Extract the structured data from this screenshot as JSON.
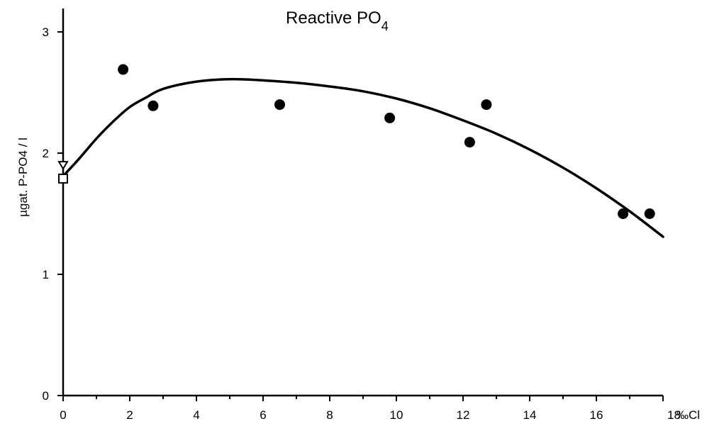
{
  "chart_data": {
    "type": "scatter",
    "title": "Reactive PO",
    "title_subscript": "4",
    "ylabel": "µgat. P-PO4 / l",
    "xlabel": "‰Cl",
    "xlim": [
      0,
      18
    ],
    "ylim": [
      0,
      3
    ],
    "x_ticks": [
      0,
      2,
      4,
      6,
      8,
      10,
      12,
      14,
      16,
      18
    ],
    "x_tick_labels": [
      "0",
      "2",
      "4",
      "6",
      "8",
      "10",
      "12",
      "14",
      "16",
      "18"
    ],
    "y_ticks": [
      0,
      1,
      2,
      3
    ],
    "y_tick_labels": [
      "0",
      "1",
      "2",
      "3"
    ],
    "grid": false,
    "series": [
      {
        "marker": "filled-circle",
        "x": [
          1.8,
          2.7,
          6.5,
          9.8,
          12.2,
          12.7,
          16.8,
          17.6
        ],
        "y": [
          2.69,
          2.39,
          2.4,
          2.29,
          2.09,
          2.4,
          1.5,
          1.5
        ]
      },
      {
        "marker": "open-triangle-down",
        "x": [
          0
        ],
        "y": [
          1.9
        ]
      },
      {
        "marker": "open-square",
        "x": [
          0
        ],
        "y": [
          1.79
        ]
      },
      {
        "marker": "fitted-curve",
        "x": [
          0,
          0.5,
          1,
          1.5,
          2,
          2.5,
          3,
          4,
          5,
          6,
          7,
          8,
          9,
          10,
          11,
          12,
          13,
          14,
          15,
          16,
          17,
          18
        ],
        "y": [
          1.81,
          1.96,
          2.12,
          2.26,
          2.38,
          2.46,
          2.53,
          2.59,
          2.61,
          2.6,
          2.58,
          2.55,
          2.51,
          2.45,
          2.37,
          2.27,
          2.16,
          2.03,
          1.88,
          1.71,
          1.52,
          1.31
        ]
      }
    ]
  }
}
